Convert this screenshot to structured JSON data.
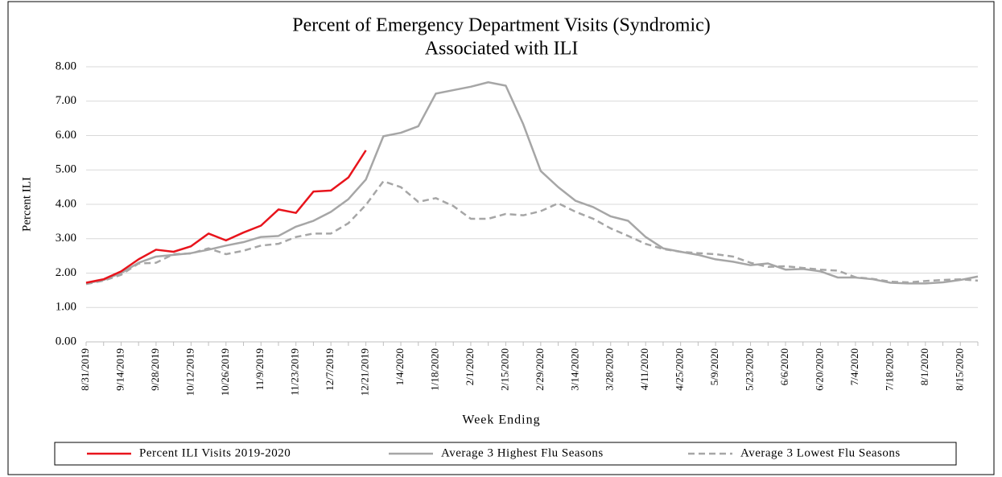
{
  "chart_data": {
    "type": "line",
    "title": [
      "Percent of Emergency Department Visits (Syndromic)",
      "Associated with ILI"
    ],
    "x_label": "Week Ending",
    "y_label": "Percent ILI",
    "categories": [
      "8/31/2019",
      null,
      "9/14/2019",
      null,
      "9/28/2019",
      null,
      "10/12/2019",
      null,
      "10/26/2019",
      null,
      "11/9/2019",
      null,
      "11/23/2019",
      null,
      "12/7/2019",
      null,
      "12/21/2019",
      null,
      "1/4/2020",
      null,
      "1/18/2020",
      null,
      "2/1/2020",
      null,
      "2/15/2020",
      null,
      "2/29/2020",
      null,
      "3/14/2020",
      null,
      "3/28/2020",
      null,
      "4/11/2020",
      null,
      "4/25/2020",
      null,
      "5/9/2020",
      null,
      "5/23/2020",
      null,
      "6/6/2020",
      null,
      "6/20/2020",
      null,
      "7/4/2020",
      null,
      "7/18/2020",
      null,
      "8/1/2020",
      null,
      "8/15/2020",
      null
    ],
    "series": [
      {
        "name": "Percent ILI Visits 2019-2020",
        "color": "#e8141c",
        "dash": false,
        "values": [
          1.72,
          1.82,
          2.05,
          2.4,
          2.68,
          2.62,
          2.78,
          3.15,
          2.95,
          3.18,
          3.38,
          3.85,
          3.75,
          4.37,
          4.4,
          4.78,
          5.57,
          null,
          null,
          null,
          null,
          null,
          null,
          null,
          null,
          null,
          null,
          null,
          null,
          null,
          null,
          null,
          null,
          null,
          null,
          null,
          null,
          null,
          null,
          null,
          null,
          null,
          null,
          null,
          null,
          null,
          null,
          null,
          null,
          null,
          null,
          null
        ]
      },
      {
        "name": "Average 3 Highest Flu Seasons",
        "color": "#a6a6a6",
        "dash": false,
        "values": [
          1.7,
          1.8,
          2.0,
          2.3,
          2.48,
          2.53,
          2.58,
          2.68,
          2.8,
          2.9,
          3.05,
          3.08,
          3.35,
          3.52,
          3.78,
          4.15,
          4.72,
          5.98,
          6.08,
          6.27,
          7.22,
          7.32,
          7.42,
          7.55,
          7.45,
          6.33,
          4.97,
          4.5,
          4.1,
          3.92,
          3.65,
          3.52,
          3.05,
          2.72,
          2.62,
          2.53,
          2.4,
          2.33,
          2.23,
          2.28,
          2.1,
          2.12,
          2.05,
          1.87,
          1.87,
          1.82,
          1.72,
          1.7,
          1.7,
          1.73,
          1.8,
          1.9
        ]
      },
      {
        "name": "Average 3 Lowest Flu Seasons",
        "color": "#a6a6a6",
        "dash": true,
        "values": [
          1.68,
          1.78,
          1.95,
          2.28,
          2.3,
          2.55,
          2.57,
          2.72,
          2.55,
          2.65,
          2.8,
          2.85,
          3.05,
          3.15,
          3.15,
          3.45,
          3.98,
          4.67,
          4.5,
          4.07,
          4.18,
          3.95,
          3.58,
          3.58,
          3.72,
          3.68,
          3.8,
          4.03,
          3.78,
          3.58,
          3.3,
          3.08,
          2.85,
          2.7,
          2.62,
          2.58,
          2.55,
          2.48,
          2.3,
          2.18,
          2.2,
          2.15,
          2.1,
          2.07,
          1.88,
          1.83,
          1.75,
          1.73,
          1.77,
          1.8,
          1.82,
          1.78
        ]
      }
    ],
    "ylim": [
      0,
      8
    ],
    "yticks": [
      {
        "value": 0,
        "label": "0.00"
      },
      {
        "value": 1,
        "label": "1.00"
      },
      {
        "value": 2,
        "label": "2.00"
      },
      {
        "value": 3,
        "label": "3.00"
      },
      {
        "value": 4,
        "label": "4.00"
      },
      {
        "value": 5,
        "label": "5.00"
      },
      {
        "value": 6,
        "label": "6.00"
      },
      {
        "value": 7,
        "label": "7.00"
      },
      {
        "value": 8,
        "label": "8.00"
      }
    ],
    "grid": true,
    "legend": "bottom"
  }
}
